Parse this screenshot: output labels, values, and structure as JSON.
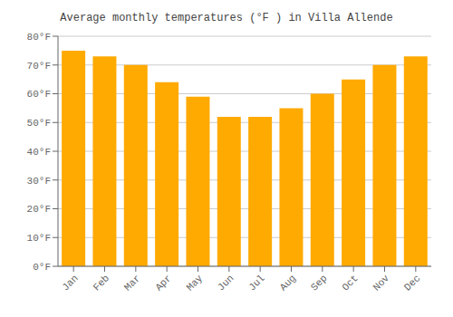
{
  "chart_data": {
    "type": "bar",
    "title": "Average monthly temperatures (°F ) in Villa Allende",
    "categories": [
      "Jan",
      "Feb",
      "Mar",
      "Apr",
      "May",
      "Jun",
      "Jul",
      "Aug",
      "Sep",
      "Oct",
      "Nov",
      "Dec"
    ],
    "values": [
      75,
      73,
      70,
      64,
      59,
      52,
      52,
      55,
      60,
      65,
      70,
      73
    ],
    "color": "#FFAA00",
    "ylim": [
      0,
      80
    ],
    "yticks": [
      {
        "value": 0,
        "label": "0°F"
      },
      {
        "value": 10,
        "label": "10°F"
      },
      {
        "value": 20,
        "label": "20°F"
      },
      {
        "value": 30,
        "label": "30°F"
      },
      {
        "value": 40,
        "label": "40°F"
      },
      {
        "value": 50,
        "label": "50°F"
      },
      {
        "value": 60,
        "label": "60°F"
      },
      {
        "value": 70,
        "label": "70°F"
      },
      {
        "value": 80,
        "label": "80°F"
      }
    ],
    "grid": true
  }
}
